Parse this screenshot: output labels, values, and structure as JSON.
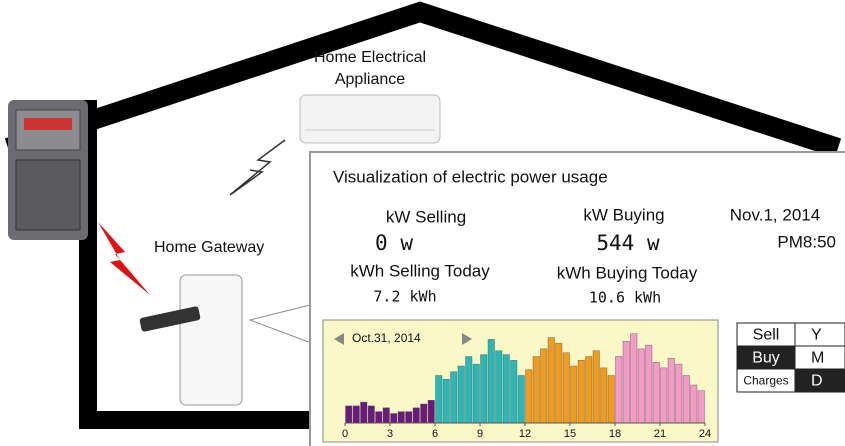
{
  "appliance_label": [
    "Home Electrical",
    "Appliance"
  ],
  "gateway_label": "Home Gateway",
  "panel": {
    "title": "Visualization of electric power usage",
    "selling_label": "kW Selling",
    "selling_value": "0 w",
    "buying_label": "kW Buying",
    "buying_value": "544 w",
    "date": "Nov.1, 2014",
    "time": "PM8:50",
    "selling_today_label": "kWh Selling Today",
    "selling_today_value": "7.2 kWh",
    "buying_today_label": "kWh Buying Today",
    "buying_today_value": "10.6 kWh"
  },
  "chart": {
    "type": "bar",
    "date": "Oct.31, 2014",
    "xlim": [
      0,
      24
    ],
    "xticks": [
      0,
      3,
      6,
      9,
      12,
      15,
      18,
      21,
      24
    ],
    "ylim": [
      0,
      100
    ],
    "series": [
      {
        "color": "#6a1a7a",
        "values": [
          18,
          18,
          22,
          18,
          12,
          16,
          10,
          12,
          12,
          16,
          20,
          24
        ]
      },
      {
        "color": "#2ab7b7",
        "values": [
          50,
          46,
          54,
          60,
          70,
          62,
          72,
          88,
          76,
          72,
          66,
          50
        ]
      },
      {
        "color": "#f29a1a",
        "values": [
          56,
          70,
          78,
          90,
          84,
          74,
          60,
          66,
          70,
          76,
          58,
          50
        ]
      },
      {
        "color": "#f59ac8",
        "values": [
          70,
          86,
          94,
          78,
          82,
          64,
          58,
          68,
          62,
          50,
          40,
          34
        ]
      }
    ]
  },
  "buttons": [
    [
      "Sell",
      "Y"
    ],
    [
      "Buy",
      "M"
    ],
    [
      "Charges",
      "D"
    ]
  ]
}
